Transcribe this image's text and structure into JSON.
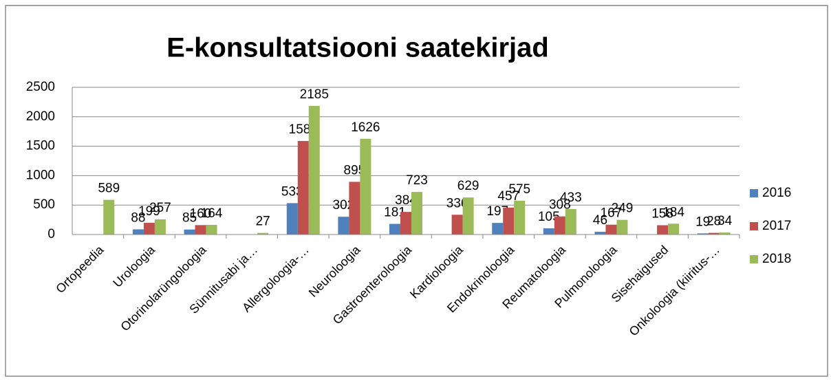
{
  "chart_data": {
    "type": "bar",
    "title": "E-konsultatsiooni saatekirjad",
    "categories": [
      "Ortopeedia",
      "Uroloogia",
      "Otorinolarüngoloogia",
      "Sünnitusabi ja…",
      "Allergoloogia-…",
      "Neuroloogia",
      "Gastroenteroloogia",
      "Kardioloogia",
      "Endokrinoloogia",
      "Reumatoloogia",
      "Pulmonoloogia",
      "Sisehaigused",
      "Onkoloogia (kiiritus-…"
    ],
    "series": [
      {
        "name": "2016",
        "color": "#4f81bd",
        "values": [
          null,
          88,
          85,
          null,
          533,
          302,
          181,
          null,
          197,
          105,
          46,
          null,
          19
        ]
      },
      {
        "name": "2017",
        "color": "#c0504d",
        "values": [
          null,
          199,
          160,
          null,
          1589,
          895,
          384,
          336,
          457,
          308,
          167,
          158,
          28
        ]
      },
      {
        "name": "2018",
        "color": "#9bbb59",
        "values": [
          589,
          257,
          164,
          27,
          2185,
          1626,
          723,
          629,
          575,
          433,
          249,
          184,
          34
        ]
      }
    ],
    "ylim": [
      0,
      2500
    ],
    "yticks": [
      0,
      500,
      1000,
      1500,
      2000,
      2500
    ],
    "grid": true,
    "legend": "right"
  }
}
